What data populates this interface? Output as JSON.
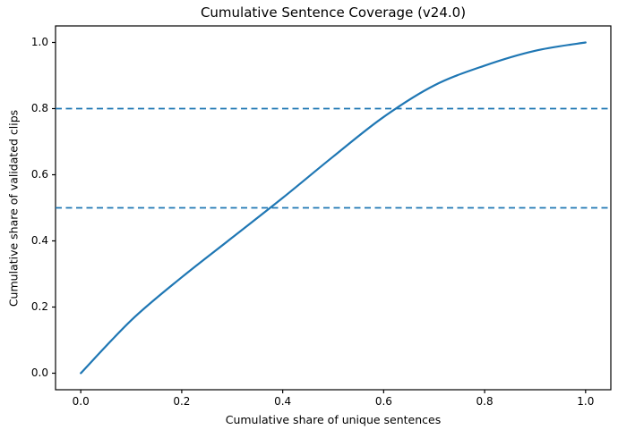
{
  "chart_data": {
    "type": "line",
    "title": "Cumulative Sentence Coverage (v24.0)",
    "xlabel": "Cumulative share of unique sentences",
    "ylabel": "Cumulative share of validated clips",
    "xlim": [
      -0.05,
      1.05
    ],
    "ylim": [
      -0.05,
      1.05
    ],
    "grid": false,
    "legend": "none",
    "x_ticks": [
      0.0,
      0.2,
      0.4,
      0.6,
      0.8,
      1.0
    ],
    "x_tick_labels": [
      "0.0",
      "0.2",
      "0.4",
      "0.6",
      "0.8",
      "1.0"
    ],
    "y_ticks": [
      0.0,
      0.2,
      0.4,
      0.6,
      0.8,
      1.0
    ],
    "y_tick_labels": [
      "0.0",
      "0.2",
      "0.4",
      "0.6",
      "0.8",
      "1.0"
    ],
    "series": [
      {
        "id": "cumulative-coverage-curve",
        "style": "solid",
        "color": "#1f77b4",
        "line_width": 2.2,
        "points": [
          [
            0.0,
            0.0
          ],
          [
            0.1,
            0.16
          ],
          [
            0.2,
            0.29
          ],
          [
            0.3,
            0.41
          ],
          [
            0.4,
            0.53
          ],
          [
            0.5,
            0.655
          ],
          [
            0.6,
            0.775
          ],
          [
            0.7,
            0.87
          ],
          [
            0.8,
            0.93
          ],
          [
            0.9,
            0.975
          ],
          [
            1.0,
            1.0
          ]
        ]
      }
    ],
    "threshold_lines": [
      {
        "y": 0.5,
        "color": "#1f77b4",
        "style": "dashed"
      },
      {
        "y": 0.8,
        "color": "#1f77b4",
        "style": "dashed"
      }
    ],
    "axes_color": "#000000",
    "background_color": "#ffffff"
  }
}
